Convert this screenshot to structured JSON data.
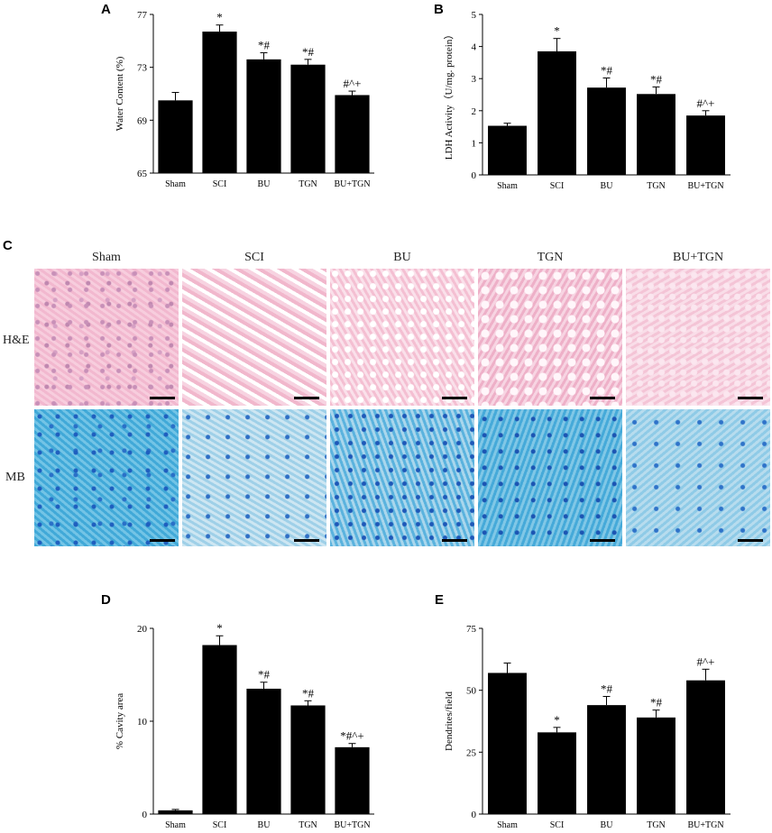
{
  "panels": {
    "A": "A",
    "B": "B",
    "C": "C",
    "D": "D",
    "E": "E"
  },
  "histology": {
    "groups": [
      "Sham",
      "SCI",
      "BU",
      "TGN",
      "BU+TGN"
    ],
    "rows": [
      "H&E",
      "MB"
    ]
  },
  "chart_data": [
    {
      "id": "A",
      "type": "bar",
      "categories": [
        "Sham",
        "SCI",
        "BU",
        "TGN",
        "BU+TGN"
      ],
      "values": [
        70.5,
        75.7,
        73.6,
        73.2,
        70.9
      ],
      "errors": [
        0.6,
        0.5,
        0.5,
        0.4,
        0.3
      ],
      "annotations": [
        "",
        "*",
        "*#",
        "*#",
        "#^+"
      ],
      "ylabel": "Water Content (%)",
      "xlabel": "",
      "ylim": [
        65,
        77
      ],
      "yticks": [
        65,
        69,
        73,
        77
      ]
    },
    {
      "id": "B",
      "type": "bar",
      "categories": [
        "Sham",
        "SCI",
        "BU",
        "TGN",
        "BU+TGN"
      ],
      "values": [
        1.53,
        3.85,
        2.72,
        2.52,
        1.85
      ],
      "errors": [
        0.08,
        0.4,
        0.3,
        0.22,
        0.15
      ],
      "annotations": [
        "",
        "*",
        "*#",
        "*#",
        "#^+"
      ],
      "ylabel": "LDH Activity（U/mg. protein）",
      "xlabel": "",
      "ylim": [
        0,
        5
      ],
      "yticks": [
        0,
        1,
        2,
        3,
        4,
        5
      ]
    },
    {
      "id": "D",
      "type": "bar",
      "categories": [
        "Sham",
        "SCI",
        "BU",
        "TGN",
        "BU+TGN"
      ],
      "values": [
        0.4,
        18.2,
        13.5,
        11.7,
        7.2
      ],
      "errors": [
        0.1,
        1.0,
        0.7,
        0.5,
        0.4
      ],
      "annotations": [
        "",
        "*",
        "*#",
        "*#",
        "*#^+"
      ],
      "ylabel": "% Cavity area",
      "xlabel": "",
      "ylim": [
        0,
        20
      ],
      "yticks": [
        0,
        10,
        20
      ]
    },
    {
      "id": "E",
      "type": "bar",
      "categories": [
        "Sham",
        "SCI",
        "BU",
        "TGN",
        "BU+TGN"
      ],
      "values": [
        57,
        33,
        44,
        39,
        54
      ],
      "errors": [
        4,
        2,
        3.5,
        3,
        4.5
      ],
      "annotations": [
        "",
        "*",
        "*#",
        "*#",
        "#^+"
      ],
      "ylabel": "Dendrites/field",
      "xlabel": "",
      "ylim": [
        0,
        75
      ],
      "yticks": [
        0,
        25,
        50,
        75
      ]
    }
  ]
}
